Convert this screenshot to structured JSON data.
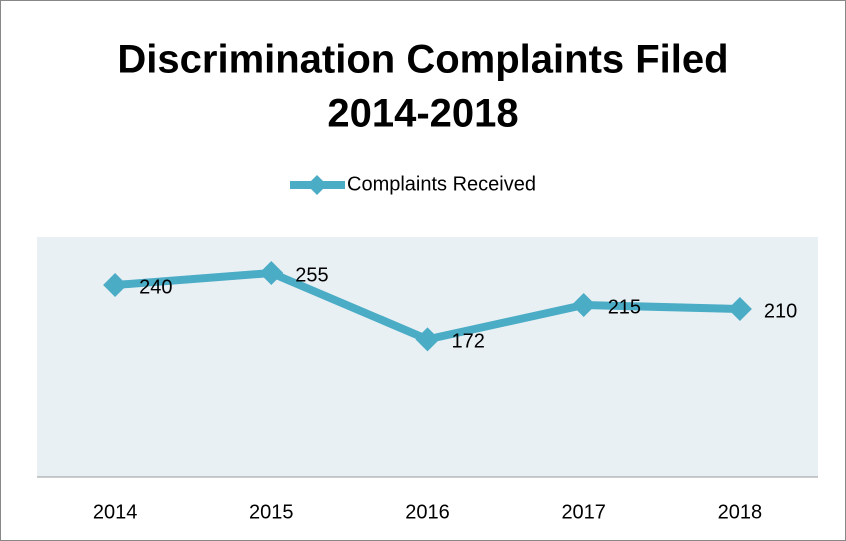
{
  "chart_data": {
    "type": "line",
    "title": [
      "Discrimination Complaints Filed",
      "2014-2018"
    ],
    "categories": [
      "2014",
      "2015",
      "2016",
      "2017",
      "2018"
    ],
    "series": [
      {
        "name": "Complaints Received",
        "color": "#4bacc6",
        "values": [
          240,
          255,
          172,
          215,
          210
        ]
      }
    ],
    "ylim": [
      0,
      300
    ],
    "plot_background": "#e9f0f4"
  }
}
